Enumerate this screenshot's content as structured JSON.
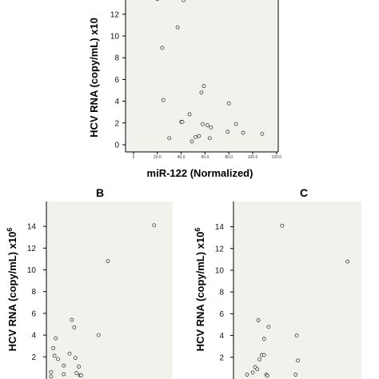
{
  "chart_data": [
    {
      "panel": "",
      "type": "scatter",
      "xlabel": "miR-122 (Normalized)",
      "ylabel": "HCV RNA (copy/mL) x10",
      "xticks": [
        "0",
        "20.0",
        "40.0",
        "60.0",
        "80.0",
        "100.0",
        "120.0"
      ],
      "yticks": [
        "0",
        "2",
        "4",
        "6",
        "8",
        "10",
        "12"
      ],
      "xlim": [
        0,
        120
      ],
      "ylim": [
        0,
        13
      ],
      "points": [
        {
          "x": 20,
          "y": 13.4
        },
        {
          "x": 42,
          "y": 13.3
        },
        {
          "x": 37,
          "y": 10.8
        },
        {
          "x": 24,
          "y": 8.9
        },
        {
          "x": 25,
          "y": 4.1
        },
        {
          "x": 30,
          "y": 0.6
        },
        {
          "x": 40,
          "y": 2.1
        },
        {
          "x": 41,
          "y": 2.1
        },
        {
          "x": 47,
          "y": 2.8
        },
        {
          "x": 49,
          "y": 0.3
        },
        {
          "x": 52,
          "y": 0.7
        },
        {
          "x": 55,
          "y": 0.8
        },
        {
          "x": 57,
          "y": 4.8
        },
        {
          "x": 58,
          "y": 1.9
        },
        {
          "x": 59,
          "y": 5.4
        },
        {
          "x": 62,
          "y": 1.8
        },
        {
          "x": 65,
          "y": 1.6
        },
        {
          "x": 64,
          "y": 0.6
        },
        {
          "x": 79,
          "y": 1.2
        },
        {
          "x": 80,
          "y": 3.8
        },
        {
          "x": 86,
          "y": 1.9
        },
        {
          "x": 92,
          "y": 1.1
        },
        {
          "x": 108,
          "y": 1.0
        }
      ]
    },
    {
      "panel": "B",
      "type": "scatter",
      "ylabel": "HCV RNA (copy/mL) x10",
      "ylabel_sup": "6",
      "yticks": [
        "2",
        "4",
        "6",
        "8",
        "10",
        "12",
        "14"
      ],
      "ylim": [
        0,
        15
      ],
      "xlim": [
        0,
        100
      ],
      "points": [
        {
          "x": 4,
          "y": 0.6
        },
        {
          "x": 4,
          "y": 0.2
        },
        {
          "x": 6,
          "y": 2.8
        },
        {
          "x": 7,
          "y": 2.1
        },
        {
          "x": 8,
          "y": 3.7
        },
        {
          "x": 10,
          "y": 1.8
        },
        {
          "x": 15,
          "y": 1.2
        },
        {
          "x": 15,
          "y": 0.4
        },
        {
          "x": 20,
          "y": 2.3
        },
        {
          "x": 22,
          "y": 5.4
        },
        {
          "x": 24,
          "y": 4.7
        },
        {
          "x": 25,
          "y": 1.9
        },
        {
          "x": 26,
          "y": 0.5
        },
        {
          "x": 28,
          "y": 1.1
        },
        {
          "x": 29,
          "y": 0.3
        },
        {
          "x": 30,
          "y": 0.3
        },
        {
          "x": 45,
          "y": 4.0
        },
        {
          "x": 53,
          "y": 10.8
        },
        {
          "x": 93,
          "y": 14.1
        }
      ]
    },
    {
      "panel": "C",
      "type": "scatter",
      "ylabel": "HCV RNA (copy/mL) x10",
      "ylabel_sup": "6",
      "yticks": [
        "2",
        "4",
        "6",
        "8",
        "10",
        "12",
        "14"
      ],
      "ylim": [
        0,
        15
      ],
      "xlim": [
        0,
        100
      ],
      "points": [
        {
          "x": 5,
          "y": 0.4
        },
        {
          "x": 10,
          "y": 0.6
        },
        {
          "x": 12,
          "y": 1.1
        },
        {
          "x": 14,
          "y": 0.9
        },
        {
          "x": 15,
          "y": 5.4
        },
        {
          "x": 16,
          "y": 1.8
        },
        {
          "x": 18,
          "y": 2.2
        },
        {
          "x": 20,
          "y": 3.7
        },
        {
          "x": 20,
          "y": 2.2
        },
        {
          "x": 22,
          "y": 0.4
        },
        {
          "x": 23,
          "y": 0.3
        },
        {
          "x": 24,
          "y": 4.8
        },
        {
          "x": 36,
          "y": 14.1
        },
        {
          "x": 48,
          "y": 0.4
        },
        {
          "x": 49,
          "y": 4.0
        },
        {
          "x": 50,
          "y": 1.7
        },
        {
          "x": 94,
          "y": 10.8
        }
      ]
    }
  ]
}
